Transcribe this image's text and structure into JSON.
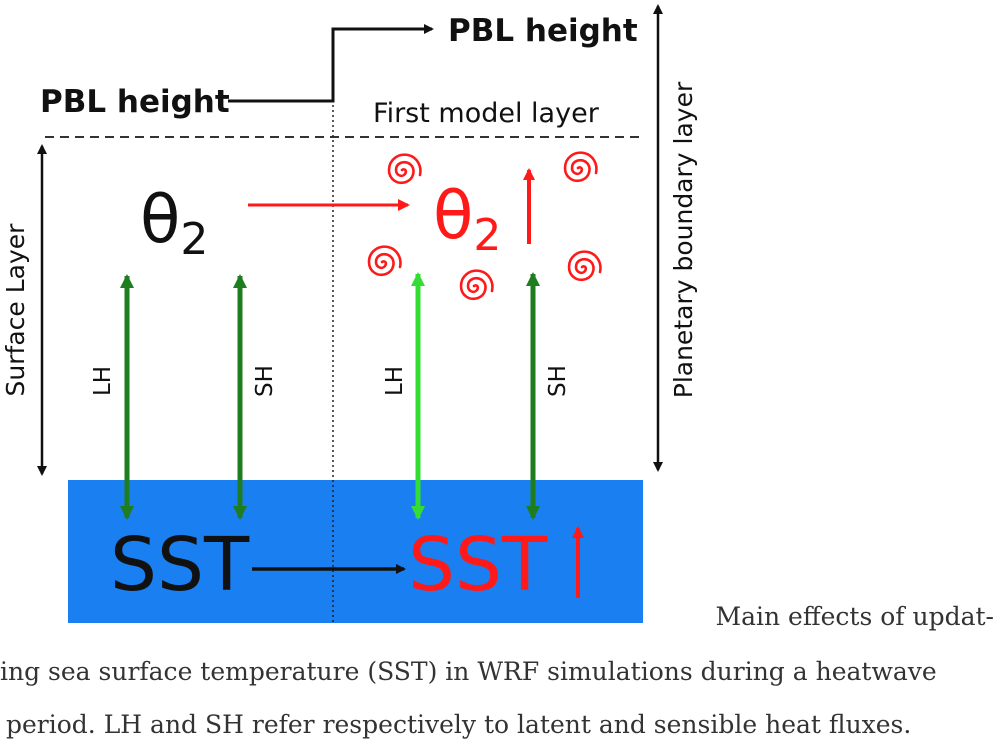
{
  "labels": {
    "pbl_height_left": "PBL height",
    "pbl_height_right": "PBL height",
    "first_model_layer": "First model layer",
    "surface_layer": "Surface Layer",
    "planetary_boundary_layer": "Planetary boundary layer",
    "theta_left_symbol": "θ",
    "theta_left_sub": "2",
    "theta_right_symbol": "θ",
    "theta_right_sub": "2",
    "lh_left": "LH",
    "sh_left": "SH",
    "lh_right": "LH",
    "sh_right": "SH",
    "sst_left": "SST",
    "sst_right": "SST"
  },
  "caption": {
    "line1": "Main effects of updat-",
    "line2": "ing sea surface temperature (SST) in WRF simulations during a heatwave",
    "line3": "period. LH and SH refer respectively to latent and sensible heat fluxes."
  },
  "colors": {
    "ocean": "#1a7ff0",
    "increase": "#ff1a1a",
    "flux_dark": "#1e7d1e",
    "flux_light": "#33dd33",
    "text": "#111111"
  }
}
